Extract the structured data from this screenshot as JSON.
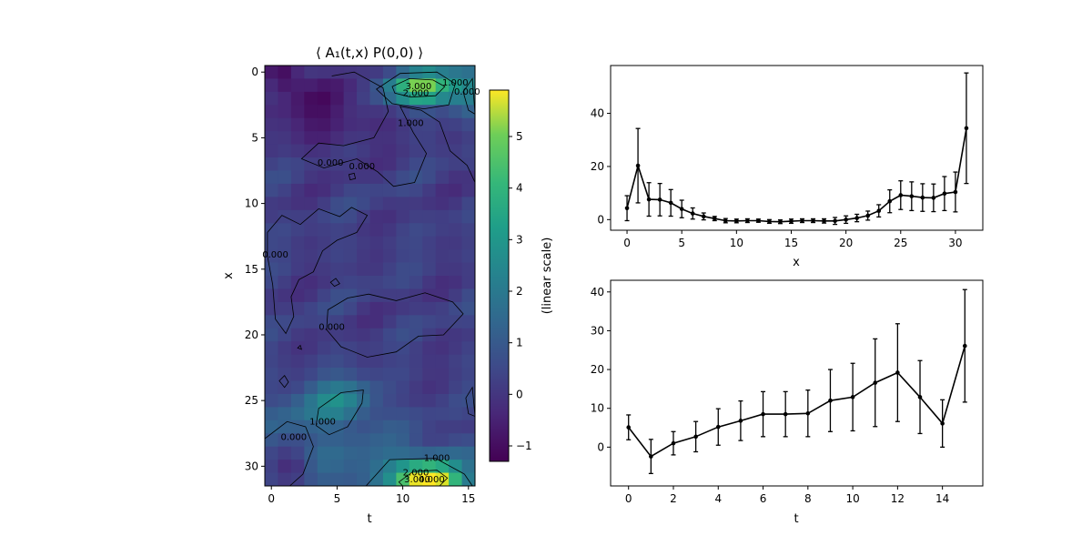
{
  "chart_data": [
    {
      "type": "heatmap",
      "title": "⟨ A₁(t,x) P(0,0) ⟩",
      "xlabel": "t",
      "ylabel": "x",
      "xlim": [
        -0.5,
        15.5
      ],
      "ylim": [
        31.5,
        -0.5
      ],
      "xticks": [
        0,
        5,
        10,
        15
      ],
      "yticks": [
        0,
        5,
        10,
        15,
        20,
        25,
        30
      ],
      "colorbar": {
        "label": "(linear scale)",
        "range": [
          -1.3,
          5.9
        ],
        "ticks": [
          -1,
          0,
          1,
          2,
          3,
          4,
          5
        ],
        "colormap": "viridis"
      },
      "contour_labels": [
        {
          "text": "3.000",
          "t": 11.2,
          "x": 1.1
        },
        {
          "text": "2.000",
          "t": 11.0,
          "x": 1.6
        },
        {
          "text": "1.000",
          "t": 14.0,
          "x": 0.8
        },
        {
          "text": "1.000",
          "t": 10.6,
          "x": 3.9
        },
        {
          "text": "0.000",
          "t": 14.9,
          "x": 1.5
        },
        {
          "text": "0.000",
          "t": 4.5,
          "x": 6.9
        },
        {
          "text": "0.000",
          "t": 6.9,
          "x": 7.2
        },
        {
          "text": "0.000",
          "t": 0.3,
          "x": 13.9
        },
        {
          "text": "0.000",
          "t": 4.6,
          "x": 19.4
        },
        {
          "text": "1.000",
          "t": 3.9,
          "x": 26.6
        },
        {
          "text": "0.000",
          "t": 1.7,
          "x": 27.8
        },
        {
          "text": "1.000",
          "t": 12.6,
          "x": 29.4
        },
        {
          "text": "2.000",
          "t": 11.0,
          "x": 30.5
        },
        {
          "text": "3.000",
          "t": 11.1,
          "x": 31.0
        },
        {
          "text": "4.000",
          "t": 12.2,
          "x": 31.0
        }
      ]
    },
    {
      "type": "line",
      "xlabel": "x",
      "xticks": [
        0,
        5,
        10,
        15,
        20,
        25,
        30
      ],
      "yticks": [
        0,
        20,
        40
      ],
      "xlim": [
        -1.5,
        32.5
      ],
      "ylim": [
        -4,
        58
      ],
      "x": [
        0,
        1,
        2,
        3,
        4,
        5,
        6,
        7,
        8,
        9,
        10,
        11,
        12,
        13,
        14,
        15,
        16,
        17,
        18,
        19,
        20,
        21,
        22,
        23,
        24,
        25,
        26,
        27,
        28,
        29,
        30,
        31
      ],
      "values": [
        4.3,
        20.3,
        7.6,
        7.5,
        6.3,
        4.0,
        2.3,
        1.2,
        0.4,
        -0.4,
        -0.5,
        -0.4,
        -0.4,
        -0.7,
        -0.8,
        -0.6,
        -0.4,
        -0.4,
        -0.5,
        -0.5,
        0.0,
        0.6,
        1.5,
        3.3,
        6.9,
        9.2,
        8.8,
        8.3,
        8.2,
        9.8,
        10.4,
        34.4
      ],
      "errors": [
        4.7,
        14.0,
        6.3,
        6.1,
        5.0,
        3.3,
        2.1,
        1.3,
        0.8,
        0.8,
        0.7,
        0.7,
        0.6,
        0.7,
        0.7,
        0.8,
        0.7,
        0.7,
        0.8,
        1.3,
        1.4,
        1.4,
        1.7,
        2.3,
        4.3,
        5.4,
        5.4,
        5.2,
        5.2,
        6.4,
        7.5,
        20.8
      ]
    },
    {
      "type": "line",
      "xlabel": "t",
      "xticks": [
        0,
        2,
        4,
        6,
        8,
        10,
        12,
        14
      ],
      "yticks": [
        0,
        10,
        20,
        30,
        40
      ],
      "xlim": [
        -0.8,
        15.8
      ],
      "ylim": [
        -10,
        43
      ],
      "x": [
        0,
        1,
        2,
        3,
        4,
        5,
        6,
        7,
        8,
        9,
        10,
        11,
        12,
        13,
        14,
        15
      ],
      "values": [
        5.1,
        -2.4,
        1.0,
        2.7,
        5.2,
        6.8,
        8.5,
        8.5,
        8.7,
        12.0,
        12.9,
        16.6,
        19.2,
        12.9,
        6.1,
        26.1
      ],
      "errors": [
        3.2,
        4.4,
        3.0,
        3.9,
        4.7,
        5.1,
        5.8,
        5.8,
        6.0,
        8.0,
        8.7,
        11.3,
        12.6,
        9.4,
        6.1,
        14.5
      ]
    }
  ]
}
